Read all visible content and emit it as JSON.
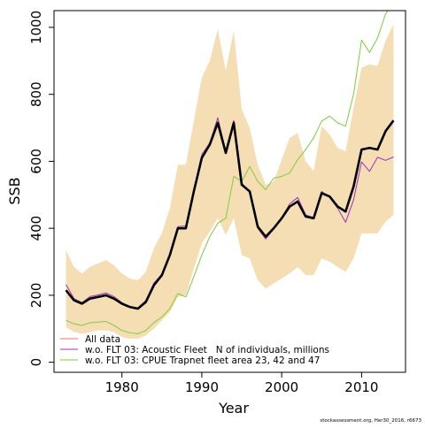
{
  "chart_data": {
    "type": "line",
    "title": "",
    "xlabel": "Year",
    "ylabel": "SSB",
    "xlim": [
      1971.5,
      2015.5
    ],
    "ylim": [
      -30,
      1050
    ],
    "xticks": [
      1980,
      1990,
      2000,
      2010
    ],
    "yticks": [
      0,
      200,
      400,
      600,
      800,
      1000
    ],
    "grid": false,
    "legend_position": "bottom-left",
    "colors": {
      "band": "#f5deb3",
      "all_data": "#000000",
      "acoustic": "#9b30c0",
      "cpue": "#7ccd3c",
      "legend_all_data": "#ff6b6b"
    },
    "x": [
      1973,
      1974,
      1975,
      1976,
      1977,
      1978,
      1979,
      1980,
      1981,
      1982,
      1983,
      1984,
      1985,
      1986,
      1987,
      1988,
      1989,
      1990,
      1991,
      1992,
      1993,
      1994,
      1995,
      1996,
      1997,
      1998,
      1999,
      2000,
      2001,
      2002,
      2003,
      2004,
      2005,
      2006,
      2007,
      2008,
      2009,
      2010,
      2011,
      2012,
      2013,
      2014
    ],
    "confidence_band": {
      "upper": [
        335,
        285,
        265,
        285,
        295,
        305,
        290,
        265,
        250,
        245,
        270,
        340,
        385,
        460,
        590,
        590,
        720,
        850,
        900,
        995,
        870,
        990,
        755,
        700,
        590,
        530,
        540,
        605,
        670,
        685,
        600,
        570,
        705,
        680,
        640,
        630,
        760,
        880,
        890,
        885,
        960,
        1010
      ],
      "lower": [
        105,
        90,
        85,
        90,
        95,
        95,
        90,
        75,
        70,
        70,
        80,
        100,
        125,
        150,
        195,
        200,
        280,
        355,
        390,
        430,
        380,
        430,
        320,
        310,
        245,
        220,
        235,
        250,
        265,
        285,
        260,
        260,
        310,
        300,
        285,
        270,
        310,
        385,
        385,
        385,
        420,
        440
      ]
    },
    "series": [
      {
        "name": "All data",
        "values": [
          215,
          185,
          175,
          190,
          195,
          200,
          190,
          175,
          165,
          160,
          180,
          230,
          260,
          320,
          400,
          400,
          510,
          610,
          650,
          715,
          625,
          715,
          530,
          510,
          405,
          375,
          400,
          430,
          465,
          480,
          435,
          430,
          505,
          495,
          465,
          450,
          525,
          635,
          640,
          635,
          690,
          722
        ]
      },
      {
        "name": "w.o. FLT 03: Acoustic Fleet   N of individuals, millions",
        "values": [
          232,
          190,
          178,
          196,
          201,
          207,
          196,
          178,
          163,
          162,
          185,
          236,
          263,
          322,
          405,
          407,
          515,
          620,
          655,
          730,
          630,
          722,
          535,
          508,
          400,
          368,
          398,
          432,
          473,
          492,
          440,
          432,
          510,
          493,
          460,
          418,
          485,
          598,
          570,
          612,
          603,
          613
        ]
      },
      {
        "name": "w.o. FLT 03: CPUE Trapnet fleet area 23, 42 and 47",
        "values": [
          125,
          115,
          110,
          118,
          120,
          122,
          110,
          95,
          88,
          85,
          95,
          118,
          135,
          160,
          205,
          195,
          255,
          320,
          375,
          415,
          430,
          555,
          540,
          585,
          540,
          515,
          550,
          555,
          565,
          605,
          635,
          670,
          720,
          735,
          715,
          705,
          800,
          962,
          925,
          968,
          1040,
          1075
        ]
      }
    ]
  },
  "footer": {
    "credit": "stockassessment.org, Her30_2016, r6673"
  }
}
